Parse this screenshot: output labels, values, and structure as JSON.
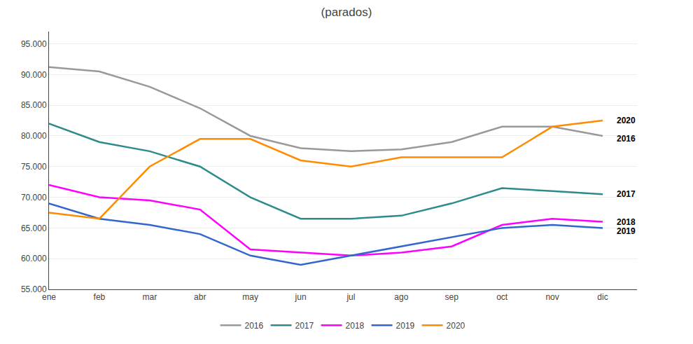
{
  "chart_data": {
    "type": "line",
    "title": "(parados)",
    "categories": [
      "ene",
      "feb",
      "mar",
      "abr",
      "may",
      "jun",
      "jul",
      "ago",
      "sep",
      "oct",
      "nov",
      "dic"
    ],
    "series": [
      {
        "name": "2016",
        "color": "#999999",
        "values": [
          91200,
          90500,
          88000,
          84500,
          80000,
          78000,
          77500,
          77800,
          79000,
          81500,
          81500,
          80000
        ]
      },
      {
        "name": "2017",
        "color": "#2E8B8B",
        "values": [
          82000,
          79000,
          77500,
          75000,
          70000,
          66500,
          66500,
          67000,
          69000,
          71500,
          71000,
          70500
        ]
      },
      {
        "name": "2018",
        "color": "#FF00FF",
        "values": [
          72000,
          70000,
          69500,
          68000,
          61500,
          61000,
          60500,
          61000,
          62000,
          65500,
          66500,
          66000
        ]
      },
      {
        "name": "2019",
        "color": "#3366CC",
        "values": [
          69000,
          66500,
          65500,
          64000,
          60500,
          59000,
          60500,
          62000,
          63500,
          65000,
          65500,
          65000
        ]
      },
      {
        "name": "2020",
        "color": "#FF8C00",
        "values": [
          67500,
          66500,
          75000,
          79500,
          79500,
          76000,
          75000,
          76500,
          76500,
          76500,
          81500,
          82500
        ]
      }
    ],
    "ylim": [
      55000,
      97000
    ],
    "yticks": [
      {
        "value": 55000,
        "label": "55.000"
      },
      {
        "value": 60000,
        "label": "60.000"
      },
      {
        "value": 65000,
        "label": "65.000"
      },
      {
        "value": 70000,
        "label": "70.000"
      },
      {
        "value": 75000,
        "label": "75.000"
      },
      {
        "value": 80000,
        "label": "80.000"
      },
      {
        "value": 85000,
        "label": "85.000"
      },
      {
        "value": 90000,
        "label": "90.000"
      },
      {
        "value": 95000,
        "label": "95.000"
      }
    ],
    "grid": true,
    "legend": "bottom",
    "annotations": [
      {
        "text": "2020",
        "x": "dic",
        "y": 82500
      },
      {
        "text": "2016",
        "x": "dic",
        "y": 79500
      },
      {
        "text": "2017",
        "x": "dic",
        "y": 70500
      },
      {
        "text": "2018",
        "x": "dic",
        "y": 66000
      },
      {
        "text": "2019",
        "x": "dic",
        "y": 64500
      }
    ]
  }
}
